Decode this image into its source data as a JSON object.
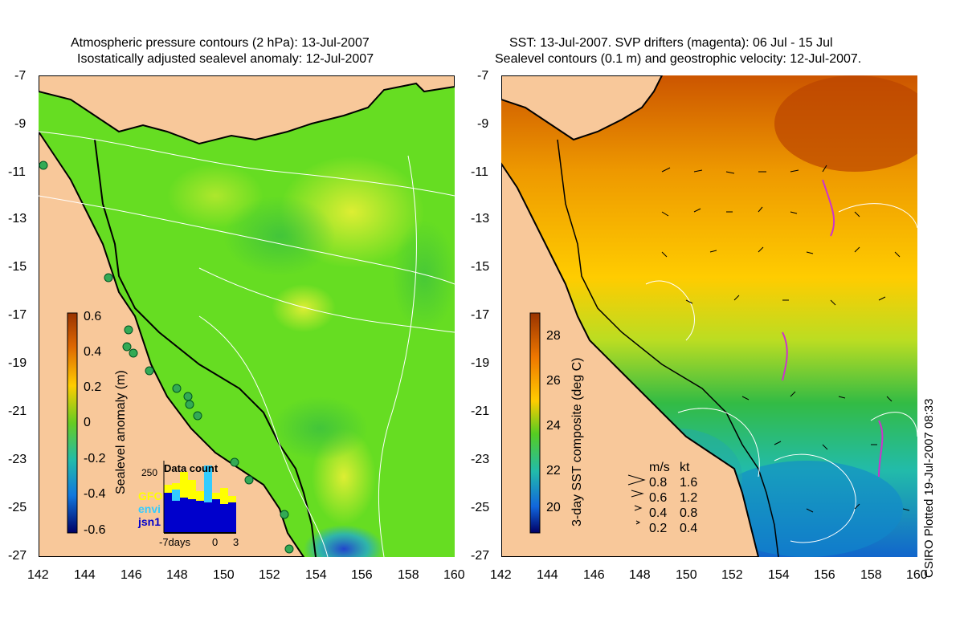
{
  "left": {
    "title_line1": "Atmospheric pressure contours (2 hPa): 13-Jul-2007",
    "title_line2": "Isostatically adjusted sealevel anomaly: 12-Jul-2007",
    "colorbar_label": "Sealevel anomaly (m)",
    "colorbar_ticks": [
      "0.6",
      "0.4",
      "0.2",
      "0",
      "-0.2",
      "-0.4",
      "-0.6"
    ],
    "datacount": {
      "title": "Data count",
      "ymax_label": "250",
      "legend": [
        {
          "name": "GFO",
          "color": "#ffff00"
        },
        {
          "name": "envi",
          "color": "#33ccff"
        },
        {
          "name": "jsn1",
          "color": "#0000cc"
        }
      ],
      "xlabels": [
        "-7days",
        "0",
        "3"
      ]
    }
  },
  "right": {
    "title_line1": "SST: 13-Jul-2007. SVP drifters (magenta): 06 Jul - 15 Jul",
    "title_line2": "Sealevel contours (0.1 m) and geostrophic velocity: 12-Jul-2007.",
    "colorbar_label": "3-day SST composite (deg C)",
    "colorbar_ticks": [
      "28",
      "26",
      "24",
      "22",
      "20"
    ],
    "velocity_legend": {
      "header_ms": "m/s",
      "header_kt": "kt",
      "rows": [
        {
          "ms": "0.8",
          "kt": "1.6"
        },
        {
          "ms": "0.6",
          "kt": "1.2"
        },
        {
          "ms": "0.4",
          "kt": "0.8"
        },
        {
          "ms": "0.2",
          "kt": "0.4"
        }
      ]
    }
  },
  "axes": {
    "lat_labels": [
      "-7",
      "-9",
      "-11",
      "-13",
      "-15",
      "-17",
      "-19",
      "-21",
      "-23",
      "-25",
      "-27"
    ],
    "lon_labels": [
      "142",
      "144",
      "146",
      "148",
      "150",
      "152",
      "154",
      "156",
      "158",
      "160"
    ]
  },
  "credit": "CSIRO Plotted 19-Jul-2007 08:33",
  "colors": {
    "land": "#f8c89a",
    "sla_base": "#66dd22",
    "sst_warm": "#ee9900",
    "sst_cool": "#22bbaa"
  }
}
